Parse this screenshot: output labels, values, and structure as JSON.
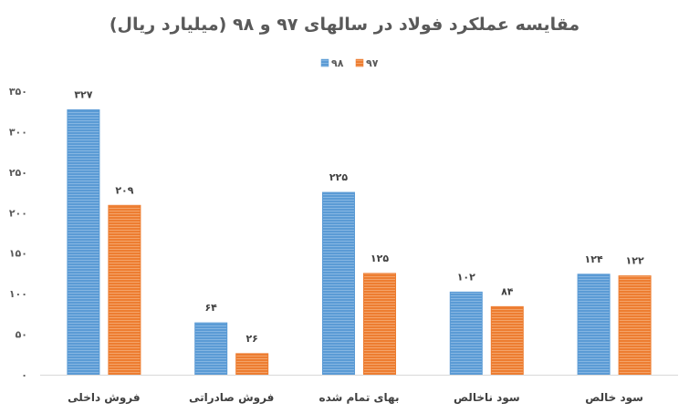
{
  "chart_data": {
    "type": "bar",
    "title": "مقایسه عملکرد فولاد در سالهای ۹۷ و ۹۸ (میلیارد ریال)",
    "categories": [
      "فروش داخلی",
      "فروش صادراتی",
      "بهای تمام شده",
      "سود ناخالص",
      "سود خالص"
    ],
    "series": [
      {
        "name": "۹۸",
        "values": [
          327,
          64,
          225,
          102,
          124
        ],
        "labels": [
          "۳۲۷",
          "۶۴",
          "۲۲۵",
          "۱۰۲",
          "۱۲۴"
        ],
        "color": "#5B9BD5"
      },
      {
        "name": "۹۷",
        "values": [
          209,
          26,
          125,
          84,
          122
        ],
        "labels": [
          "۲۰۹",
          "۲۶",
          "۱۲۵",
          "۸۴",
          "۱۲۲"
        ],
        "color": "#ED7D31"
      }
    ],
    "ylim": [
      0,
      350
    ],
    "yticks": [
      0,
      50,
      100,
      150,
      200,
      250,
      300,
      350
    ],
    "ytick_labels": [
      "۰",
      "۵۰",
      "۱۰۰",
      "۱۵۰",
      "۲۰۰",
      "۲۵۰",
      "۳۰۰",
      "۳۵۰"
    ],
    "legend_position": "top-center",
    "grid": false,
    "xlabel": "",
    "ylabel": ""
  }
}
